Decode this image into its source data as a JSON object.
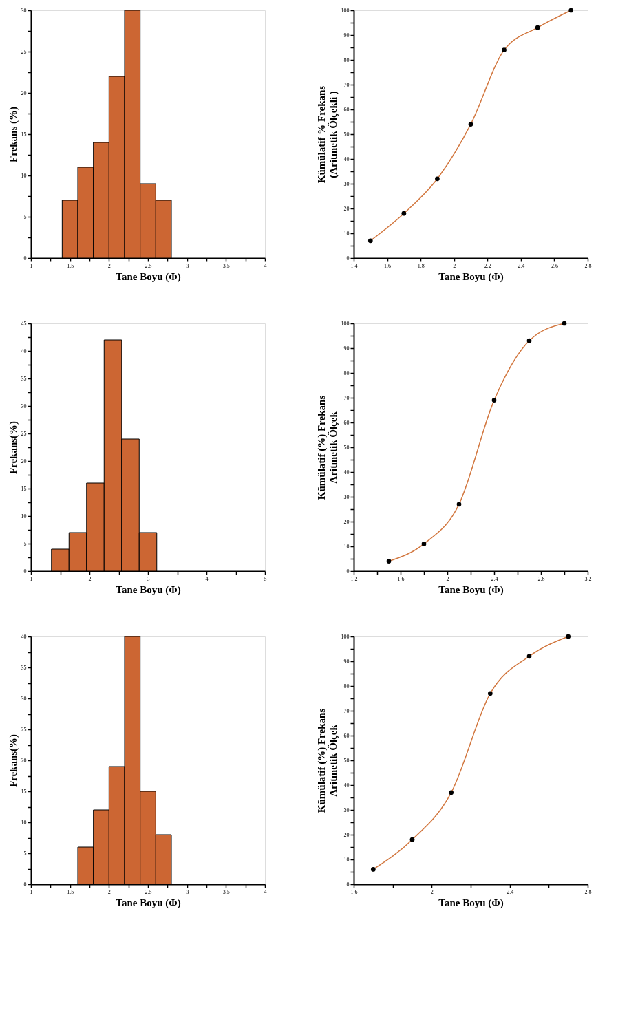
{
  "chart_data": [
    {
      "type": "histogram",
      "xlabel": "Tane Boyu (Φ)",
      "ylabel": "Frekans (%)",
      "bins": [
        1.4,
        1.6,
        1.8,
        2.0,
        2.2,
        2.4,
        2.6,
        2.8
      ],
      "values": [
        7,
        11,
        14,
        22,
        30,
        9,
        7
      ],
      "color": "#cc6633",
      "xlim": [
        1,
        4
      ],
      "xticks": [
        1,
        {
          "value": 1.25,
          "label": null
        },
        1.5,
        {
          "value": 1.75,
          "label": null
        },
        2,
        {
          "value": 2.25,
          "label": null
        },
        2.5,
        {
          "value": 2.75,
          "label": null
        },
        3,
        {
          "value": 3.25,
          "label": null
        },
        3.5,
        {
          "value": 3.75,
          "label": null
        },
        4
      ],
      "ylim": [
        0,
        30
      ],
      "yticks": [
        0,
        {
          "value": 2.5,
          "label": null
        },
        5,
        {
          "value": 7.5,
          "label": null
        },
        10,
        {
          "value": 12.5,
          "label": null
        },
        15,
        {
          "value": 17.5,
          "label": null
        },
        20,
        {
          "value": 22.5,
          "label": null
        },
        25,
        {
          "value": 27.5,
          "label": null
        },
        30
      ]
    },
    {
      "type": "line",
      "xlabel": "Tane Boyu (Φ)",
      "ylabel": "Kümülatif % Frekans\n(Aritmetik Ölçekli )",
      "x": [
        1.5,
        1.7,
        1.9,
        2.1,
        2.3,
        2.5,
        2.7
      ],
      "series": [
        {
          "color": "#d2773f",
          "values": [
            7,
            18,
            32,
            54,
            84,
            93,
            100
          ]
        }
      ],
      "marker": "circle",
      "xlim": [
        1.4,
        2.8
      ],
      "xticks": [
        1.4,
        1.6,
        1.8,
        2,
        2.2,
        2.4,
        2.6,
        2.8
      ],
      "ylim": [
        0,
        100
      ],
      "yticks": [
        0,
        {
          "value": 5,
          "label": null
        },
        10,
        {
          "value": 15,
          "label": null
        },
        20,
        {
          "value": 25,
          "label": null
        },
        30,
        {
          "value": 35,
          "label": null
        },
        40,
        {
          "value": 45,
          "label": null
        },
        50,
        {
          "value": 55,
          "label": null
        },
        60,
        {
          "value": 65,
          "label": null
        },
        70,
        {
          "value": 75,
          "label": null
        },
        80,
        {
          "value": 85,
          "label": null
        },
        90,
        {
          "value": 95,
          "label": null
        },
        100
      ]
    },
    {
      "type": "histogram",
      "xlabel": "Tane Boyu (Φ)",
      "ylabel": "Frekans(%)",
      "bins": [
        1.35,
        1.65,
        1.95,
        2.25,
        2.55,
        2.85,
        3.15
      ],
      "values": [
        4,
        7,
        16,
        42,
        24,
        7
      ],
      "color": "#cc6633",
      "xlim": [
        1,
        5
      ],
      "xticks": [
        1,
        {
          "value": 1.5,
          "label": null
        },
        2,
        {
          "value": 2.5,
          "label": null
        },
        3,
        {
          "value": 3.5,
          "label": null
        },
        4,
        {
          "value": 4.5,
          "label": null
        },
        5
      ],
      "ylim": [
        0,
        45
      ],
      "yticks": [
        0,
        {
          "value": 2.5,
          "label": null
        },
        5,
        {
          "value": 7.5,
          "label": null
        },
        10,
        {
          "value": 12.5,
          "label": null
        },
        15,
        {
          "value": 17.5,
          "label": null
        },
        20,
        {
          "value": 22.5,
          "label": null
        },
        25,
        {
          "value": 27.5,
          "label": null
        },
        30,
        {
          "value": 32.5,
          "label": null
        },
        35,
        {
          "value": 37.5,
          "label": null
        },
        40,
        {
          "value": 42.5,
          "label": null
        },
        45
      ]
    },
    {
      "type": "line",
      "xlabel": "Tane Boyu (Φ)",
      "ylabel": "Kümülatif (%) Frekans\nAritmetik Ölçek",
      "x": [
        1.5,
        1.8,
        2.1,
        2.4,
        2.7,
        3.0
      ],
      "series": [
        {
          "color": "#d2773f",
          "values": [
            4,
            11,
            27,
            69,
            93,
            100
          ]
        }
      ],
      "marker": "circle",
      "xlim": [
        1.2,
        3.2
      ],
      "xticks": [
        1.2,
        {
          "value": 1.4,
          "label": null
        },
        1.6,
        {
          "value": 1.8,
          "label": null
        },
        2,
        {
          "value": 2.2,
          "label": null
        },
        2.4,
        {
          "value": 2.6,
          "label": null
        },
        2.8,
        {
          "value": 3.0,
          "label": null
        },
        3.2
      ],
      "ylim": [
        0,
        100
      ],
      "yticks": [
        0,
        {
          "value": 5,
          "label": null
        },
        10,
        {
          "value": 15,
          "label": null
        },
        20,
        {
          "value": 25,
          "label": null
        },
        30,
        {
          "value": 35,
          "label": null
        },
        40,
        {
          "value": 45,
          "label": null
        },
        50,
        {
          "value": 55,
          "label": null
        },
        60,
        {
          "value": 65,
          "label": null
        },
        70,
        {
          "value": 75,
          "label": null
        },
        80,
        {
          "value": 85,
          "label": null
        },
        90,
        {
          "value": 95,
          "label": null
        },
        100
      ]
    },
    {
      "type": "histogram",
      "xlabel": "Tane Boyu (Φ)",
      "ylabel": "Frekans(%)",
      "bins": [
        1.6,
        1.8,
        2.0,
        2.2,
        2.4,
        2.6,
        2.8
      ],
      "values": [
        6,
        12,
        19,
        40,
        15,
        8
      ],
      "color": "#cc6633",
      "xlim": [
        1,
        4
      ],
      "xticks": [
        1,
        {
          "value": 1.25,
          "label": null
        },
        1.5,
        {
          "value": 1.75,
          "label": null
        },
        2,
        {
          "value": 2.25,
          "label": null
        },
        2.5,
        {
          "value": 2.75,
          "label": null
        },
        3,
        {
          "value": 3.25,
          "label": null
        },
        3.5,
        {
          "value": 3.75,
          "label": null
        },
        4
      ],
      "ylim": [
        0,
        40
      ],
      "yticks": [
        0,
        {
          "value": 2.5,
          "label": null
        },
        5,
        {
          "value": 7.5,
          "label": null
        },
        10,
        {
          "value": 12.5,
          "label": null
        },
        15,
        {
          "value": 17.5,
          "label": null
        },
        20,
        {
          "value": 22.5,
          "label": null
        },
        25,
        {
          "value": 27.5,
          "label": null
        },
        30,
        {
          "value": 32.5,
          "label": null
        },
        35,
        {
          "value": 37.5,
          "label": null
        },
        40
      ]
    },
    {
      "type": "line",
      "xlabel": "Tane Boyu (Φ)",
      "ylabel": "Kümülatif (%) Frekans\nAritmetik Ölçek",
      "x": [
        1.7,
        1.9,
        2.1,
        2.3,
        2.5,
        2.7
      ],
      "series": [
        {
          "color": "#d2773f",
          "values": [
            6,
            18,
            37,
            77,
            92,
            100
          ]
        }
      ],
      "marker": "circle",
      "xlim": [
        1.6,
        2.8
      ],
      "xticks": [
        1.6,
        {
          "value": 1.8,
          "label": null
        },
        2,
        {
          "value": 2.2,
          "label": null
        },
        2.4,
        {
          "value": 2.6,
          "label": null
        },
        2.8
      ],
      "ylim": [
        0,
        100
      ],
      "yticks": [
        0,
        {
          "value": 5,
          "label": null
        },
        10,
        {
          "value": 15,
          "label": null
        },
        20,
        {
          "value": 25,
          "label": null
        },
        30,
        {
          "value": 35,
          "label": null
        },
        40,
        {
          "value": 45,
          "label": null
        },
        50,
        {
          "value": 55,
          "label": null
        },
        60,
        {
          "value": 65,
          "label": null
        },
        70,
        {
          "value": 75,
          "label": null
        },
        80,
        {
          "value": 85,
          "label": null
        },
        90,
        {
          "value": 95,
          "label": null
        },
        100
      ]
    }
  ]
}
